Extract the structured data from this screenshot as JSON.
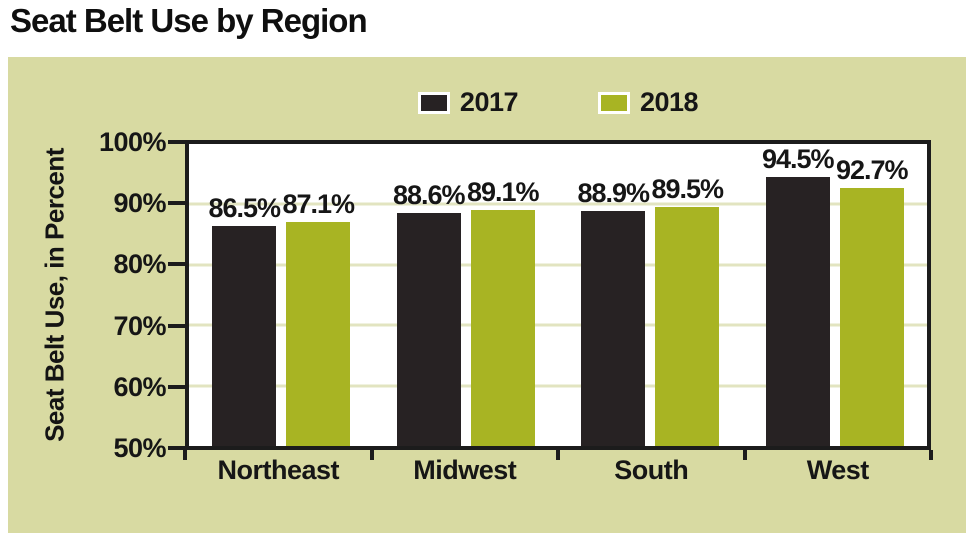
{
  "chart_data": {
    "type": "bar",
    "title": "Seat Belt Use by Region",
    "categories": [
      "Northeast",
      "Midwest",
      "South",
      "West"
    ],
    "series": [
      {
        "name": "2017",
        "color": "#272223",
        "values": [
          86.5,
          88.6,
          88.9,
          94.5
        ]
      },
      {
        "name": "2018",
        "color": "#a8b423",
        "values": [
          87.1,
          89.1,
          89.5,
          92.7
        ]
      }
    ],
    "value_label_suffix": "%",
    "xlabel": "",
    "ylabel": "Seat Belt Use, in Percent",
    "ylim": [
      50,
      100
    ],
    "ytick_labels": [
      "100%",
      "90%",
      "80%",
      "70%",
      "60%",
      "50%"
    ],
    "gridline_values": [
      90,
      80,
      70,
      60
    ],
    "grid": "horizontal",
    "legend_position": "top-center",
    "colors": {
      "panel_background": "#d8daa2",
      "plot_background": "#ffffff",
      "gridline": "#e2e4c0",
      "frame": "#1c1c1c",
      "text": "#161616"
    }
  }
}
